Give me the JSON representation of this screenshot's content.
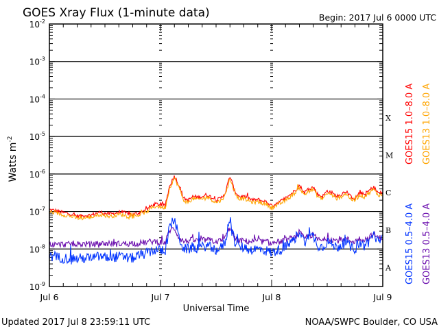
{
  "chart_data": {
    "type": "line",
    "title": "GOES Xray Flux (1-minute data)",
    "begin_label": "Begin:  2017 Jul 6 0000 UTC",
    "xlabel": "Universal Time",
    "ylabel": "Watts m",
    "ylabel_sup": "-2",
    "x_unit": "hours since 2017 Jul 6 0000 UTC",
    "xlim": [
      0,
      72
    ],
    "x_ticks": [
      {
        "h": 0,
        "label": "Jul 6"
      },
      {
        "h": 24,
        "label": "Jul 7"
      },
      {
        "h": 48,
        "label": "Jul 8"
      },
      {
        "h": 72,
        "label": "Jul 9"
      }
    ],
    "y_scale": "log",
    "ylim_log10": [
      -9,
      -2
    ],
    "y_ticks": [
      {
        "exp": -2,
        "label": "-2"
      },
      {
        "exp": -3,
        "label": "-3"
      },
      {
        "exp": -4,
        "label": "-4"
      },
      {
        "exp": -5,
        "label": "-5"
      },
      {
        "exp": -6,
        "label": "-6"
      },
      {
        "exp": -7,
        "label": "-7"
      },
      {
        "exp": -8,
        "label": "-8"
      },
      {
        "exp": -9,
        "label": "-9"
      }
    ],
    "y_tick_base": "10",
    "flare_classes": [
      {
        "label": "X",
        "exp": -4
      },
      {
        "label": "M",
        "exp": -5
      },
      {
        "label": "C",
        "exp": -6
      },
      {
        "label": "B",
        "exp": -7
      },
      {
        "label": "A",
        "exp": -8
      }
    ],
    "grid": "horizontal lines at decades",
    "series": [
      {
        "name": "GOES15 1.0-8.0 A",
        "legend": "GOES15 1.0–8.0 A",
        "color": "#ff0000",
        "noise": 0.05,
        "offset": 0,
        "hourly_log10": [
          -6.95,
          -6.97,
          -7.0,
          -7.03,
          -7.05,
          -7.08,
          -7.12,
          -7.12,
          -7.1,
          -7.1,
          -7.05,
          -7.02,
          -7.05,
          -7.07,
          -7.05,
          -7.02,
          -7.03,
          -7.06,
          -7.08,
          -7.05,
          -7.0,
          -6.95,
          -6.85,
          -6.8,
          -6.82,
          -6.85,
          -6.3,
          -6.05,
          -6.3,
          -6.65,
          -6.7,
          -6.6,
          -6.62,
          -6.6,
          -6.55,
          -6.62,
          -6.7,
          -6.65,
          -6.5,
          -6.05,
          -6.45,
          -6.6,
          -6.6,
          -6.65,
          -6.7,
          -6.68,
          -6.72,
          -6.75,
          -6.85,
          -6.78,
          -6.72,
          -6.65,
          -6.55,
          -6.45,
          -6.3,
          -6.5,
          -6.4,
          -6.35,
          -6.55,
          -6.6,
          -6.45,
          -6.5,
          -6.6,
          -6.55,
          -6.45,
          -6.6,
          -6.65,
          -6.5,
          -6.55,
          -6.45,
          -6.35,
          -6.5,
          -6.5
        ]
      },
      {
        "name": "GOES13 1.0-8.0 A",
        "legend": "GOES13 1.0–8.0 A",
        "color": "#ffa500",
        "noise": 0.05,
        "offset": -0.06,
        "hourly_log10": [
          -6.95,
          -6.97,
          -7.0,
          -7.03,
          -7.05,
          -7.08,
          -7.12,
          -7.12,
          -7.1,
          -7.1,
          -7.05,
          -7.02,
          -7.05,
          -7.07,
          -7.05,
          -7.02,
          -7.03,
          -7.06,
          -7.08,
          -7.05,
          -7.0,
          -6.95,
          -6.85,
          -6.8,
          -6.82,
          -6.85,
          -6.3,
          -6.05,
          -6.3,
          -6.65,
          -6.7,
          -6.6,
          -6.62,
          -6.6,
          -6.55,
          -6.62,
          -6.7,
          -6.65,
          -6.5,
          -6.05,
          -6.45,
          -6.6,
          -6.6,
          -6.65,
          -6.7,
          -6.68,
          -6.72,
          -6.75,
          -6.85,
          -6.78,
          -6.72,
          -6.65,
          -6.55,
          -6.45,
          -6.3,
          -6.5,
          -6.4,
          -6.35,
          -6.55,
          -6.6,
          -6.45,
          -6.5,
          -6.6,
          -6.55,
          -6.45,
          -6.6,
          -6.65,
          -6.5,
          -6.55,
          -6.45,
          -6.35,
          -6.5,
          -6.5
        ]
      },
      {
        "name": "GOES13 0.5-4.0 A",
        "legend": "GOES13 0.5–4.0 A",
        "color": "#6a0dad",
        "noise": 0.08,
        "offset": 0,
        "hourly_log10": [
          -7.87,
          -7.88,
          -7.88,
          -7.87,
          -7.88,
          -7.86,
          -7.88,
          -7.87,
          -7.86,
          -7.88,
          -7.87,
          -7.85,
          -7.86,
          -7.85,
          -7.87,
          -7.86,
          -7.85,
          -7.86,
          -7.84,
          -7.86,
          -7.83,
          -7.82,
          -7.8,
          -7.8,
          -7.82,
          -7.83,
          -7.5,
          -7.45,
          -7.7,
          -7.8,
          -7.78,
          -7.76,
          -7.78,
          -7.77,
          -7.75,
          -7.78,
          -7.8,
          -7.78,
          -7.7,
          -7.4,
          -7.72,
          -7.78,
          -7.78,
          -7.8,
          -7.8,
          -7.79,
          -7.8,
          -7.82,
          -7.85,
          -7.82,
          -7.8,
          -7.76,
          -7.72,
          -7.7,
          -7.55,
          -7.72,
          -7.65,
          -7.62,
          -7.75,
          -7.78,
          -7.7,
          -7.74,
          -7.78,
          -7.76,
          -7.72,
          -7.78,
          -7.8,
          -7.72,
          -7.75,
          -7.7,
          -7.6,
          -7.7,
          -7.7
        ]
      },
      {
        "name": "GOES15 0.5-4.0 A",
        "legend": "GOES15 0.5–4.0 A",
        "color": "#0033ff",
        "noise": 0.14,
        "offset": 0,
        "hourly_log10": [
          -8.2,
          -8.22,
          -8.22,
          -8.24,
          -8.25,
          -8.24,
          -8.26,
          -8.25,
          -8.24,
          -8.25,
          -8.22,
          -8.2,
          -8.22,
          -8.24,
          -8.22,
          -8.2,
          -8.22,
          -8.24,
          -8.24,
          -8.2,
          -8.15,
          -8.12,
          -8.05,
          -8.02,
          -8.05,
          -8.05,
          -7.4,
          -7.2,
          -7.7,
          -8.0,
          -8.0,
          -7.95,
          -7.98,
          -7.95,
          -7.9,
          -7.98,
          -8.02,
          -7.98,
          -7.8,
          -7.15,
          -7.8,
          -7.95,
          -7.95,
          -8.0,
          -8.02,
          -8.0,
          -8.02,
          -8.05,
          -8.1,
          -8.05,
          -8.0,
          -7.95,
          -7.85,
          -7.75,
          -7.5,
          -7.8,
          -7.7,
          -7.65,
          -7.9,
          -7.95,
          -7.8,
          -7.88,
          -7.95,
          -7.9,
          -7.82,
          -7.95,
          -8.0,
          -7.85,
          -7.9,
          -7.8,
          -7.6,
          -7.8,
          -7.75
        ]
      }
    ]
  },
  "footer": {
    "updated": "Updated 2017 Jul  8 23:59:11 UTC",
    "credit": "NOAA/SWPC Boulder, CO USA"
  }
}
